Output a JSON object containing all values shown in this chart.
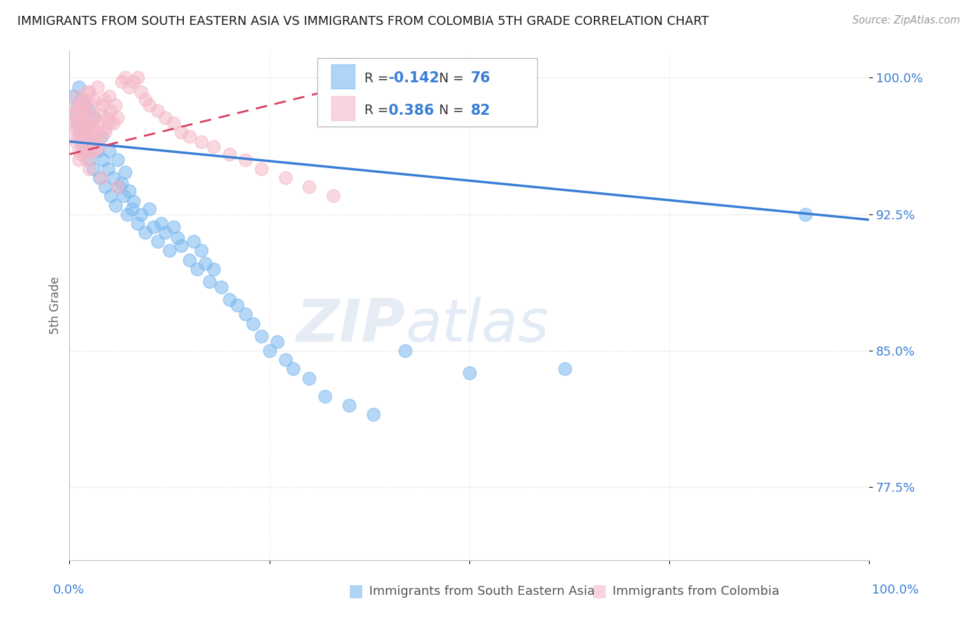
{
  "title": "IMMIGRANTS FROM SOUTH EASTERN ASIA VS IMMIGRANTS FROM COLOMBIA 5TH GRADE CORRELATION CHART",
  "source": "Source: ZipAtlas.com",
  "xlabel_blue": "Immigrants from South Eastern Asia",
  "xlabel_pink": "Immigrants from Colombia",
  "ylabel": "5th Grade",
  "xlim": [
    0.0,
    1.0
  ],
  "ylim": [
    0.735,
    1.015
  ],
  "yticks": [
    0.775,
    0.85,
    0.925,
    1.0
  ],
  "ytick_labels": [
    "77.5%",
    "85.0%",
    "92.5%",
    "100.0%"
  ],
  "legend_r_blue": "-0.142",
  "legend_n_blue": "76",
  "legend_r_pink": "0.386",
  "legend_n_pink": "82",
  "blue_color": "#7ab8f0",
  "pink_color": "#f5b8c8",
  "trend_blue_color": "#3a7fd5",
  "trend_pink_color": "#d94060",
  "watermark_zip": "ZIP",
  "watermark_atlas": "atlas",
  "background_color": "#ffffff",
  "blue_scatter_x": [
    0.005,
    0.008,
    0.01,
    0.01,
    0.012,
    0.013,
    0.015,
    0.015,
    0.016,
    0.018,
    0.018,
    0.02,
    0.02,
    0.022,
    0.022,
    0.025,
    0.025,
    0.028,
    0.03,
    0.03,
    0.035,
    0.038,
    0.04,
    0.042,
    0.045,
    0.048,
    0.05,
    0.052,
    0.055,
    0.058,
    0.06,
    0.062,
    0.065,
    0.068,
    0.07,
    0.072,
    0.075,
    0.078,
    0.08,
    0.085,
    0.09,
    0.095,
    0.1,
    0.105,
    0.11,
    0.115,
    0.12,
    0.125,
    0.13,
    0.135,
    0.14,
    0.15,
    0.155,
    0.16,
    0.165,
    0.17,
    0.175,
    0.18,
    0.19,
    0.2,
    0.21,
    0.22,
    0.23,
    0.24,
    0.25,
    0.26,
    0.27,
    0.28,
    0.3,
    0.32,
    0.35,
    0.38,
    0.42,
    0.5,
    0.62,
    0.92
  ],
  "blue_scatter_y": [
    0.99,
    0.98,
    0.985,
    0.975,
    0.995,
    0.97,
    0.988,
    0.965,
    0.978,
    0.96,
    0.972,
    0.985,
    0.968,
    0.975,
    0.96,
    0.982,
    0.955,
    0.965,
    0.978,
    0.95,
    0.96,
    0.945,
    0.968,
    0.955,
    0.94,
    0.95,
    0.96,
    0.935,
    0.945,
    0.93,
    0.955,
    0.94,
    0.942,
    0.935,
    0.948,
    0.925,
    0.938,
    0.928,
    0.932,
    0.92,
    0.925,
    0.915,
    0.928,
    0.918,
    0.91,
    0.92,
    0.915,
    0.905,
    0.918,
    0.912,
    0.908,
    0.9,
    0.91,
    0.895,
    0.905,
    0.898,
    0.888,
    0.895,
    0.885,
    0.878,
    0.875,
    0.87,
    0.865,
    0.858,
    0.85,
    0.855,
    0.845,
    0.84,
    0.835,
    0.825,
    0.82,
    0.815,
    0.85,
    0.838,
    0.84,
    0.925
  ],
  "pink_scatter_x": [
    0.003,
    0.005,
    0.006,
    0.007,
    0.008,
    0.009,
    0.01,
    0.01,
    0.011,
    0.012,
    0.012,
    0.013,
    0.014,
    0.015,
    0.015,
    0.016,
    0.017,
    0.018,
    0.018,
    0.02,
    0.02,
    0.021,
    0.022,
    0.023,
    0.024,
    0.025,
    0.025,
    0.026,
    0.028,
    0.028,
    0.03,
    0.03,
    0.032,
    0.034,
    0.035,
    0.036,
    0.038,
    0.04,
    0.042,
    0.044,
    0.045,
    0.048,
    0.05,
    0.052,
    0.055,
    0.058,
    0.06,
    0.065,
    0.07,
    0.075,
    0.08,
    0.085,
    0.09,
    0.095,
    0.1,
    0.11,
    0.12,
    0.13,
    0.14,
    0.15,
    0.165,
    0.18,
    0.2,
    0.22,
    0.24,
    0.27,
    0.3,
    0.33,
    0.06,
    0.04,
    0.025,
    0.015,
    0.02,
    0.03,
    0.035,
    0.022,
    0.05,
    0.045,
    0.028,
    0.018,
    0.012,
    0.038
  ],
  "pink_scatter_y": [
    0.975,
    0.98,
    0.972,
    0.985,
    0.965,
    0.978,
    0.99,
    0.968,
    0.982,
    0.96,
    0.975,
    0.97,
    0.965,
    0.985,
    0.958,
    0.978,
    0.972,
    0.96,
    0.988,
    0.965,
    0.975,
    0.955,
    0.968,
    0.98,
    0.96,
    0.992,
    0.97,
    0.975,
    0.965,
    0.985,
    0.96,
    0.972,
    0.978,
    0.97,
    0.965,
    0.975,
    0.968,
    0.98,
    0.985,
    0.988,
    0.972,
    0.978,
    0.99,
    0.982,
    0.975,
    0.985,
    0.978,
    0.998,
    1.0,
    0.995,
    0.998,
    1.0,
    0.992,
    0.988,
    0.985,
    0.982,
    0.978,
    0.975,
    0.97,
    0.968,
    0.965,
    0.962,
    0.958,
    0.955,
    0.95,
    0.945,
    0.94,
    0.935,
    0.94,
    0.945,
    0.95,
    0.985,
    0.982,
    0.988,
    0.995,
    0.992,
    0.975,
    0.97,
    0.96,
    0.978,
    0.955,
    0.962
  ],
  "blue_trend_x0": 0.0,
  "blue_trend_x1": 1.0,
  "blue_trend_y0": 0.965,
  "blue_trend_y1": 0.922,
  "pink_trend_x0": 0.0,
  "pink_trend_x1": 0.4,
  "pink_trend_y0": 0.958,
  "pink_trend_y1": 1.001
}
